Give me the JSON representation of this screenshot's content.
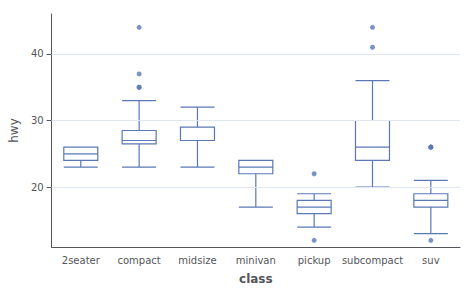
{
  "chart_data": {
    "type": "box",
    "categories": [
      "2seater",
      "compact",
      "midsize",
      "minivan",
      "pickup",
      "subcompact",
      "suv"
    ],
    "boxes": [
      {
        "q1": 24,
        "median": 25,
        "q3": 26,
        "whislo": 23,
        "whishi": 26,
        "fliers": []
      },
      {
        "q1": 26.5,
        "median": 27,
        "q3": 28.5,
        "whislo": 23,
        "whishi": 33,
        "fliers": [
          35,
          35,
          37,
          44
        ]
      },
      {
        "q1": 27,
        "median": 27,
        "q3": 29,
        "whislo": 23,
        "whishi": 32,
        "fliers": []
      },
      {
        "q1": 22,
        "median": 23,
        "q3": 24,
        "whislo": 17,
        "whishi": 24,
        "fliers": []
      },
      {
        "q1": 16,
        "median": 17,
        "q3": 18,
        "whislo": 14,
        "whishi": 19,
        "fliers": [
          22,
          12
        ]
      },
      {
        "q1": 24,
        "median": 26,
        "q3": 30,
        "whislo": 20,
        "whishi": 36,
        "fliers": [
          41,
          44
        ]
      },
      {
        "q1": 17,
        "median": 18,
        "q3": 19,
        "whislo": 13,
        "whishi": 21,
        "fliers": [
          26,
          26,
          26,
          12
        ]
      }
    ],
    "color": "#5b78b5",
    "xlabel": "class",
    "ylabel": "hwy",
    "ylim": [
      11,
      46
    ],
    "yticks": [
      20,
      30,
      40
    ],
    "grid": true
  }
}
